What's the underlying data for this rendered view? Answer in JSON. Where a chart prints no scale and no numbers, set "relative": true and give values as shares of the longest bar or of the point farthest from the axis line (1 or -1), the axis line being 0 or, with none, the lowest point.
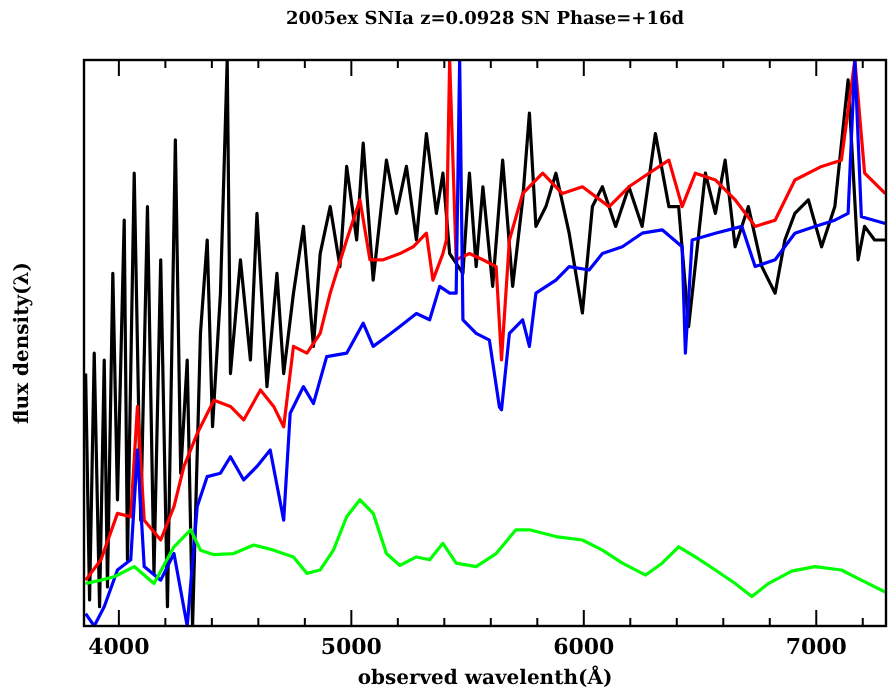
{
  "chart_data": {
    "type": "line",
    "title": "2005ex SNIa z=0.0928 SN Phase=+16d",
    "xlabel": "observed wavelenth(Å)",
    "ylabel": "flux density(λ)",
    "relative": true,
    "xlim": [
      3850,
      7300
    ],
    "xticks": [
      4000,
      {
        "value": 4200,
        "label": null
      },
      {
        "value": 4400,
        "label": null
      },
      {
        "value": 4600,
        "label": null
      },
      {
        "value": 4800,
        "label": null
      },
      5000,
      {
        "value": 5200,
        "label": null
      },
      {
        "value": 5400,
        "label": null
      },
      {
        "value": 5600,
        "label": null
      },
      {
        "value": 5800,
        "label": null
      },
      6000,
      {
        "value": 6200,
        "label": null
      },
      {
        "value": 6400,
        "label": null
      },
      {
        "value": 6600,
        "label": null
      },
      {
        "value": 6800,
        "label": null
      },
      7000,
      {
        "value": 7200,
        "label": null
      }
    ],
    "grid": false,
    "line_style": "solid",
    "series": [
      {
        "color": "#000000",
        "x": [
          3857,
          3874,
          3894,
          3917,
          3937,
          3951,
          3974,
          3994,
          4023,
          4037,
          4066,
          4094,
          4123,
          4151,
          4180,
          4209,
          4243,
          4266,
          4294,
          4317,
          4351,
          4380,
          4403,
          4437,
          4466,
          4480,
          4523,
          4566,
          4594,
          4637,
          4680,
          4709,
          4751,
          4794,
          4837,
          4866,
          4909,
          4951,
          4980,
          5023,
          5051,
          5094,
          5151,
          5194,
          5237,
          5280,
          5323,
          5366,
          5394,
          5423,
          5480,
          5508,
          5537,
          5566,
          5608,
          5651,
          5694,
          5737,
          5766,
          5794,
          5837,
          5880,
          5937,
          5994,
          6037,
          6080,
          6137,
          6194,
          6251,
          6308,
          6366,
          6408,
          6451,
          6523,
          6566,
          6608,
          6651,
          6708,
          6766,
          6823,
          6865,
          6908,
          6966,
          7023,
          7080,
          7137,
          7180,
          7208,
          7251,
          7297
        ],
        "values": [
          0.446,
          0.046,
          0.482,
          0.034,
          0.47,
          0.069,
          0.623,
          0.223,
          0.717,
          0.117,
          0.8,
          0.187,
          0.741,
          0.093,
          0.647,
          0.034,
          0.859,
          0.27,
          0.47,
          0,
          0.517,
          0.682,
          0.352,
          0.588,
          1,
          0.446,
          0.647,
          0.47,
          0.729,
          0.423,
          0.623,
          0.446,
          0.588,
          0.706,
          0.494,
          0.658,
          0.741,
          0.635,
          0.812,
          0.682,
          0.853,
          0.611,
          0.823,
          0.729,
          0.812,
          0.682,
          0.87,
          0.729,
          0.8,
          0.658,
          0.623,
          0.8,
          0.635,
          0.776,
          0.6,
          0.823,
          0.6,
          0.753,
          0.906,
          0.706,
          0.741,
          0.8,
          0.694,
          0.553,
          0.741,
          0.776,
          0.706,
          0.776,
          0.706,
          0.87,
          0.741,
          0.741,
          0.529,
          0.8,
          0.729,
          0.823,
          0.67,
          0.741,
          0.635,
          0.588,
          0.682,
          0.729,
          0.753,
          0.67,
          0.741,
          0.965,
          0.647,
          0.706,
          0.682,
          0.682
        ]
      },
      {
        "color": "#ff0000",
        "x": [
          3857,
          3923,
          3994,
          4051,
          4080,
          4109,
          4180,
          4237,
          4280,
          4337,
          4409,
          4480,
          4537,
          4609,
          4666,
          4709,
          4751,
          4809,
          4866,
          4909,
          4980,
          5037,
          5080,
          5137,
          5209,
          5266,
          5323,
          5351,
          5394,
          5409,
          5423,
          5451,
          5508,
          5566,
          5623,
          5646,
          5680,
          5737,
          5823,
          5908,
          5994,
          6109,
          6194,
          6280,
          6366,
          6423,
          6480,
          6566,
          6651,
          6737,
          6823,
          6908,
          7023,
          7108,
          7166,
          7208,
          7297
        ],
        "values": [
          0.081,
          0.117,
          0.199,
          0.193,
          0.388,
          0.187,
          0.152,
          0.211,
          0.282,
          0.34,
          0.399,
          0.388,
          0.364,
          0.417,
          0.388,
          0.352,
          0.494,
          0.482,
          0.517,
          0.588,
          0.682,
          0.753,
          0.647,
          0.647,
          0.658,
          0.67,
          0.694,
          0.611,
          0.658,
          0.682,
          1,
          0.647,
          0.658,
          0.647,
          0.635,
          0.47,
          0.682,
          0.764,
          0.8,
          0.764,
          0.776,
          0.741,
          0.776,
          0.8,
          0.823,
          0.741,
          0.8,
          0.788,
          0.753,
          0.706,
          0.717,
          0.788,
          0.812,
          0.823,
          1,
          0.8,
          0.764
        ]
      },
      {
        "color": "#0000ff",
        "x": [
          3857,
          3894,
          3937,
          3994,
          4051,
          4080,
          4109,
          4180,
          4237,
          4294,
          4337,
          4380,
          4437,
          4480,
          4537,
          4594,
          4651,
          4709,
          4737,
          4794,
          4837,
          4894,
          4980,
          5051,
          5094,
          5151,
          5209,
          5280,
          5337,
          5380,
          5423,
          5451,
          5466,
          5480,
          5537,
          5594,
          5637,
          5646,
          5680,
          5737,
          5766,
          5794,
          5880,
          5937,
          6023,
          6080,
          6166,
          6251,
          6337,
          6423,
          6437,
          6466,
          6566,
          6680,
          6737,
          6823,
          6908,
          6994,
          7080,
          7137,
          7166,
          7194,
          7297
        ],
        "values": [
          0.022,
          0,
          0.034,
          0.099,
          0.117,
          0.311,
          0.105,
          0.081,
          0.128,
          0,
          0.211,
          0.264,
          0.27,
          0.299,
          0.258,
          0.282,
          0.311,
          0.187,
          0.376,
          0.423,
          0.393,
          0.476,
          0.482,
          0.535,
          0.494,
          0.511,
          0.529,
          0.552,
          0.541,
          0.6,
          0.588,
          0.588,
          1,
          0.541,
          0.517,
          0.505,
          0.387,
          0.382,
          0.517,
          0.541,
          0.494,
          0.588,
          0.611,
          0.635,
          0.629,
          0.658,
          0.67,
          0.694,
          0.7,
          0.67,
          0.482,
          0.682,
          0.694,
          0.706,
          0.635,
          0.647,
          0.694,
          0.706,
          0.717,
          0.729,
          1,
          0.723,
          0.711
        ]
      },
      {
        "color": "#00ff00",
        "x": [
          3857,
          3923,
          3980,
          4066,
          4151,
          4237,
          4309,
          4351,
          4409,
          4494,
          4580,
          4666,
          4751,
          4809,
          4866,
          4923,
          4980,
          5037,
          5094,
          5151,
          5209,
          5280,
          5337,
          5394,
          5451,
          5537,
          5623,
          5708,
          5766,
          5880,
          5994,
          6080,
          6166,
          6266,
          6337,
          6408,
          6480,
          6566,
          6651,
          6723,
          6794,
          6894,
          6994,
          7108,
          7194,
          7297
        ],
        "values": [
          0.075,
          0.081,
          0.087,
          0.105,
          0.075,
          0.14,
          0.17,
          0.134,
          0.126,
          0.128,
          0.143,
          0.134,
          0.122,
          0.093,
          0.099,
          0.134,
          0.193,
          0.223,
          0.199,
          0.128,
          0.107,
          0.122,
          0.117,
          0.146,
          0.111,
          0.105,
          0.128,
          0.17,
          0.17,
          0.158,
          0.152,
          0.134,
          0.111,
          0.09,
          0.111,
          0.14,
          0.122,
          0.099,
          0.075,
          0.052,
          0.075,
          0.097,
          0.105,
          0.099,
          0.081,
          0.06
        ]
      }
    ]
  }
}
